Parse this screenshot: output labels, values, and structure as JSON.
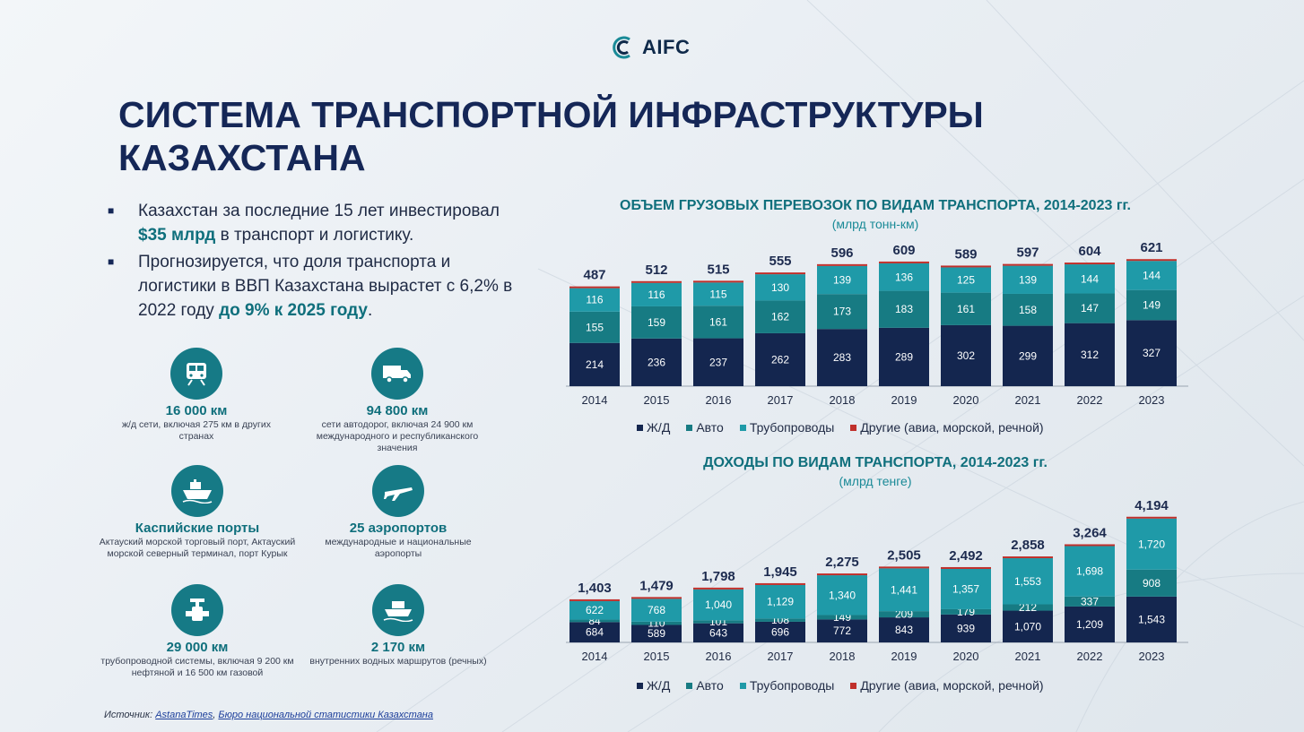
{
  "logo": {
    "text": "AIFC"
  },
  "title": {
    "line1": "СИСТЕМА ТРАНСПОРТНОЙ ИНФРАСТРУКТУРЫ",
    "line2": "КАЗАХСТАНА"
  },
  "bullets": [
    {
      "pre": "Казахстан за последние 15 лет инвестировал ",
      "bold": "$35 млрд",
      "post": " в транспорт и логистику."
    },
    {
      "pre": "Прогнозируется, что доля транспорта и логистики в ВВП Казахстана вырастет с 6,2% в 2022 году ",
      "bold": "до 9% к 2025 году",
      "post": "."
    }
  ],
  "stats": [
    {
      "icon": "train-icon",
      "value": "16 000 км",
      "desc": "ж/д сети, включая 275 км в других странах"
    },
    {
      "icon": "truck-icon",
      "value": "94 800 км",
      "desc": "сети автодорог, включая 24 900 км международного и республиканского значения"
    },
    {
      "icon": "ship-icon",
      "value": "Каспийские порты",
      "desc": "Актауский морской торговый порт, Актауский морской северный терминал, порт Курык"
    },
    {
      "icon": "airplane-icon",
      "value": "25 аэропортов",
      "desc": "международные и национальные аэропорты"
    },
    {
      "icon": "pipeline-icon",
      "value": "29 000 км",
      "desc": "трубопроводной системы, включая 9 200 км нефтяной и 16 500 км газовой"
    },
    {
      "icon": "river-boat-icon",
      "value": "2 170 км",
      "desc": "внутренних водных маршрутов (речных)"
    }
  ],
  "source": {
    "label": "Источник: ",
    "link1": "AstanaTimes",
    "sep": ", ",
    "link2": "Бюро национальной статистики Казахстана"
  },
  "colors": {
    "rail": "#14264f",
    "auto": "#177b83",
    "pipe": "#1f9aa8",
    "other": "#c0302b"
  },
  "legend": {
    "rail": "Ж/Д",
    "auto": "Авто",
    "pipe": "Трубопроводы",
    "other": "Другие (авиа, морской, речной)"
  },
  "chart_data": [
    {
      "type": "bar",
      "stacked": true,
      "title": "ОБЪЕМ ГРУЗОВЫХ ПЕРЕВОЗОК ПО ВИДАМ ТРАНСПОРТА, 2014-2023 гг.",
      "subtitle": "(млрд тонн-км)",
      "categories": [
        "2014",
        "2015",
        "2016",
        "2017",
        "2018",
        "2019",
        "2020",
        "2021",
        "2022",
        "2023"
      ],
      "series": [
        {
          "name": "Ж/Д",
          "values": [
            214,
            236,
            237,
            262,
            283,
            289,
            302,
            299,
            312,
            327
          ]
        },
        {
          "name": "Авто",
          "values": [
            155,
            159,
            161,
            162,
            173,
            183,
            161,
            158,
            147,
            149
          ]
        },
        {
          "name": "Трубопроводы",
          "values": [
            116,
            116,
            115,
            130,
            139,
            136,
            125,
            139,
            144,
            144
          ]
        },
        {
          "name": "Другие (авиа, морской, речной)",
          "values": [
            2,
            1,
            2,
            1,
            1,
            1,
            1,
            1,
            1,
            1
          ]
        }
      ],
      "totals": [
        "487",
        "512",
        "515",
        "555",
        "596",
        "609",
        "589",
        "597",
        "604",
        "621"
      ],
      "ylim": [
        0,
        621
      ],
      "legend_position": "bottom"
    },
    {
      "type": "bar",
      "stacked": true,
      "title": "ДОХОДЫ ПО ВИДАМ ТРАНСПОРТА, 2014-2023 гг.",
      "subtitle": "(млрд тенге)",
      "categories": [
        "2014",
        "2015",
        "2016",
        "2017",
        "2018",
        "2019",
        "2020",
        "2021",
        "2022",
        "2023"
      ],
      "series": [
        {
          "name": "Ж/Д",
          "values": [
            684,
            589,
            643,
            696,
            772,
            843,
            939,
            1070,
            1209,
            1543
          ],
          "labels": [
            "684",
            "589",
            "643",
            "696",
            "772",
            "843",
            "939",
            "1,070",
            "1,209",
            "1,543"
          ]
        },
        {
          "name": "Авто",
          "values": [
            84,
            110,
            101,
            108,
            149,
            209,
            179,
            212,
            337,
            908
          ],
          "labels": [
            "84",
            "110",
            "101",
            "108",
            "149",
            "209",
            "179",
            "212",
            "337",
            "908"
          ]
        },
        {
          "name": "Трубопроводы",
          "values": [
            622,
            768,
            1040,
            1129,
            1340,
            1441,
            1357,
            1553,
            1698,
            1720
          ],
          "labels": [
            "622",
            "768",
            "1,040",
            "1,129",
            "1,340",
            "1,441",
            "1,357",
            "1,553",
            "1,698",
            "1,720"
          ]
        },
        {
          "name": "Другие (авиа, морской, речной)",
          "values": [
            13,
            12,
            14,
            12,
            14,
            12,
            17,
            23,
            20,
            23
          ]
        }
      ],
      "totals": [
        "1,403",
        "1,479",
        "1,798",
        "1,945",
        "2,275",
        "2,505",
        "2,492",
        "2,858",
        "3,264",
        "4,194"
      ],
      "ylim": [
        0,
        4194
      ],
      "legend_position": "bottom"
    }
  ]
}
